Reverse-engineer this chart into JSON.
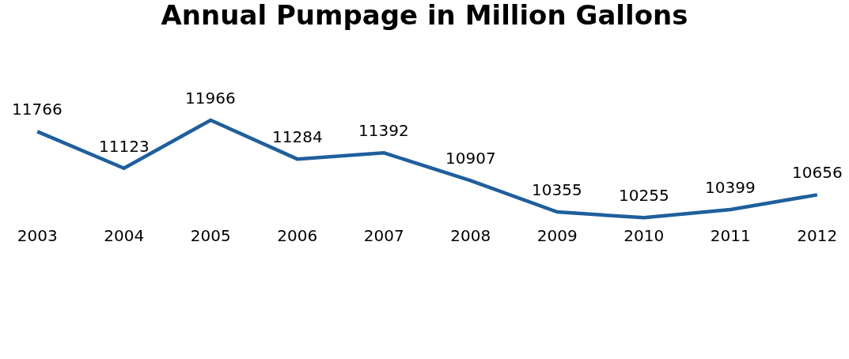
{
  "chart_data": {
    "type": "line",
    "title": "Annual Pumpage in Million Gallons",
    "categories": [
      "2003",
      "2004",
      "2005",
      "2006",
      "2007",
      "2008",
      "2009",
      "2010",
      "2011",
      "2012"
    ],
    "series": [
      {
        "color": "#1f5f9c",
        "values": [
          11766,
          11123,
          11966,
          11284,
          11392,
          10907,
          10355,
          10255,
          10399,
          10656
        ]
      }
    ],
    "tick_labels": "x",
    "data_labels": true,
    "marker": "none",
    "line_style": "solid"
  }
}
